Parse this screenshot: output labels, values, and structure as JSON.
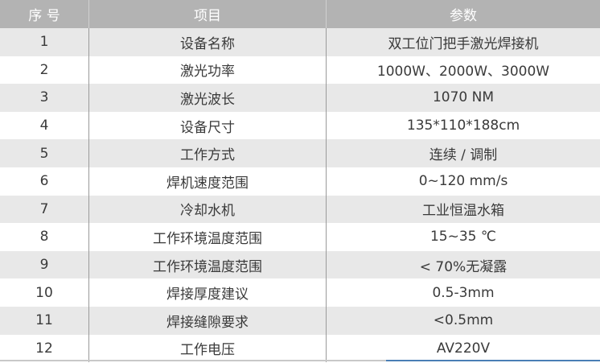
{
  "header": {
    "index": "序 号",
    "item": "项目",
    "param": "参数"
  },
  "rows": [
    {
      "index": "1",
      "item": "设备名称",
      "param": "双工位门把手激光焊接机"
    },
    {
      "index": "2",
      "item": "激光功率",
      "param": "1000W、2000W、3000W"
    },
    {
      "index": "3",
      "item": "激光波长",
      "param": "1070 NM"
    },
    {
      "index": "4",
      "item": "设备尺寸",
      "param": "135*110*188cm"
    },
    {
      "index": "5",
      "item": "工作方式",
      "param": "连续 / 调制"
    },
    {
      "index": "6",
      "item": "焊机速度范围",
      "param": "0~120 mm/s"
    },
    {
      "index": "7",
      "item": "冷却水机",
      "param": "工业恒温水箱"
    },
    {
      "index": "8",
      "item": "工作环境温度范围",
      "param": "15~35 ℃"
    },
    {
      "index": "9",
      "item": "工作环境温度范围",
      "param": "< 70%无凝露"
    },
    {
      "index": "10",
      "item": "焊接厚度建议",
      "param": "0.5-3mm"
    },
    {
      "index": "11",
      "item": "焊接缝隙要求",
      "param": "<0.5mm"
    },
    {
      "index": "12",
      "item": "工作电压",
      "param": "AV220V"
    }
  ]
}
